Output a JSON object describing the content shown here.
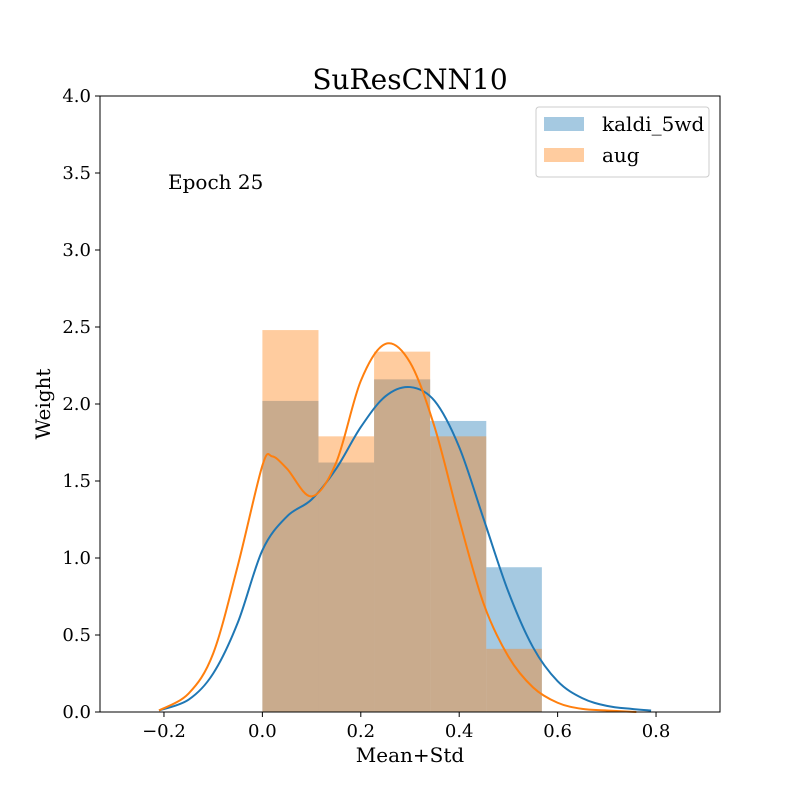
{
  "chart_data": {
    "type": "bar",
    "title": "SuResCNN10",
    "xlabel": "Mean+Std",
    "ylabel": "Weight",
    "annotation": "Epoch 25",
    "xlim": [
      -0.33,
      0.93
    ],
    "ylim": [
      0,
      4.0
    ],
    "xticks": [
      -0.2,
      0.0,
      0.2,
      0.4,
      0.6,
      0.8
    ],
    "xtick_labels": [
      "−0.2",
      "0.0",
      "0.2",
      "0.4",
      "0.6",
      "0.8"
    ],
    "yticks": [
      0.0,
      0.5,
      1.0,
      1.5,
      2.0,
      2.5,
      3.0,
      3.5,
      4.0
    ],
    "ytick_labels": [
      "0.0",
      "0.5",
      "1.0",
      "1.5",
      "2.0",
      "2.5",
      "3.0",
      "3.5",
      "4.0"
    ],
    "grid": false,
    "legend_position": "top-right",
    "series": [
      {
        "name": "kaldi_5wd",
        "color": "#1f77b4",
        "histogram": {
          "bin_edges": [
            0.0,
            0.114,
            0.227,
            0.341,
            0.455,
            0.568
          ],
          "heights": [
            2.02,
            1.62,
            2.16,
            1.89,
            0.94
          ]
        },
        "kde": {
          "x": [
            -0.21,
            -0.15,
            -0.1,
            -0.05,
            0.0,
            0.05,
            0.1,
            0.15,
            0.2,
            0.25,
            0.3,
            0.35,
            0.4,
            0.45,
            0.5,
            0.55,
            0.6,
            0.65,
            0.7,
            0.75,
            0.79
          ],
          "y": [
            0.01,
            0.08,
            0.25,
            0.58,
            1.05,
            1.27,
            1.38,
            1.58,
            1.85,
            2.05,
            2.11,
            2.02,
            1.72,
            1.25,
            0.78,
            0.42,
            0.2,
            0.09,
            0.04,
            0.02,
            0.01
          ]
        }
      },
      {
        "name": "aug",
        "color": "#ff7f0e",
        "histogram": {
          "bin_edges": [
            0.0,
            0.114,
            0.227,
            0.341,
            0.455,
            0.568
          ],
          "heights": [
            2.48,
            1.79,
            2.34,
            1.79,
            0.41
          ]
        },
        "kde": {
          "x": [
            -0.21,
            -0.15,
            -0.1,
            -0.05,
            0.0,
            0.02,
            0.05,
            0.1,
            0.15,
            0.2,
            0.25,
            0.3,
            0.35,
            0.4,
            0.45,
            0.5,
            0.55,
            0.6,
            0.65,
            0.7,
            0.76
          ],
          "y": [
            0.01,
            0.12,
            0.38,
            0.95,
            1.6,
            1.66,
            1.58,
            1.4,
            1.62,
            2.15,
            2.39,
            2.27,
            1.85,
            1.25,
            0.7,
            0.36,
            0.16,
            0.06,
            0.02,
            0.01,
            0.0
          ]
        }
      }
    ]
  }
}
